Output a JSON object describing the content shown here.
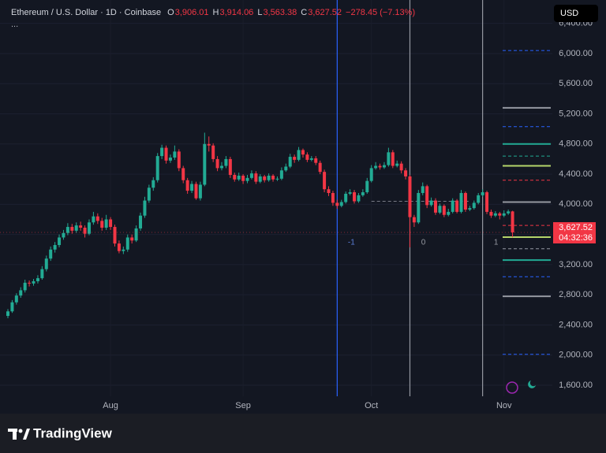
{
  "chart_data": {
    "type": "candlestick",
    "title": "Ethereum / U.S. Dollar · 1D · Coinbase",
    "currency": "USD",
    "ohlc_legend": [
      {
        "key": "O",
        "value": 3906.01,
        "label": "3,906.01"
      },
      {
        "key": "H",
        "value": 3914.06,
        "label": "3,914.06"
      },
      {
        "key": "L",
        "value": 3563.38,
        "label": "3,563.38"
      },
      {
        "key": "C",
        "value": 3627.52,
        "label": "3,627.52"
      }
    ],
    "change": {
      "value": -278.45,
      "label": "−278.45 (−7.13%)"
    },
    "last_price": {
      "value": 3627.52,
      "label": "3,627.52"
    },
    "countdown": "04:32:36",
    "up_color": "#22ab94",
    "down_color": "#f23645",
    "ylim": [
      1224,
      6710
    ],
    "yticks": [
      {
        "value": 1600,
        "label": "1,600.00"
      },
      {
        "value": 2000,
        "label": "2,000.00"
      },
      {
        "value": 2400,
        "label": "2,400.00"
      },
      {
        "value": 2800,
        "label": "2,800.00"
      },
      {
        "value": 3200,
        "label": "3,200.00"
      },
      {
        "value": 3600,
        "label": "3,600.00"
      },
      {
        "value": 4000,
        "label": "4,000.00"
      },
      {
        "value": 4400,
        "label": "4,400.00"
      },
      {
        "value": 4800,
        "label": "4,800.00"
      },
      {
        "value": 5200,
        "label": "5,200.00"
      },
      {
        "value": 5600,
        "label": "5,600.00"
      },
      {
        "value": 6000,
        "label": "6,000.00"
      },
      {
        "value": 6400,
        "label": "6,400.00"
      }
    ],
    "xticks": [
      {
        "value": 24,
        "label": "Aug"
      },
      {
        "value": 55,
        "label": "Sep"
      },
      {
        "value": 85,
        "label": "Oct"
      },
      {
        "value": 116,
        "label": "Nov"
      }
    ],
    "candles": [
      [
        2520,
        2610,
        2490,
        2580
      ],
      [
        2580,
        2730,
        2560,
        2700
      ],
      [
        2700,
        2820,
        2670,
        2790
      ],
      [
        2790,
        2900,
        2760,
        2860
      ],
      [
        2860,
        3000,
        2830,
        2960
      ],
      [
        2960,
        2990,
        2910,
        2950
      ],
      [
        2950,
        3010,
        2920,
        2980
      ],
      [
        2980,
        3060,
        2950,
        3020
      ],
      [
        3020,
        3180,
        3000,
        3140
      ],
      [
        3140,
        3320,
        3110,
        3280
      ],
      [
        3280,
        3440,
        3250,
        3400
      ],
      [
        3400,
        3500,
        3360,
        3460
      ],
      [
        3460,
        3600,
        3430,
        3560
      ],
      [
        3560,
        3660,
        3530,
        3620
      ],
      [
        3620,
        3750,
        3590,
        3700
      ],
      [
        3700,
        3740,
        3610,
        3650
      ],
      [
        3650,
        3760,
        3620,
        3720
      ],
      [
        3720,
        3770,
        3650,
        3690
      ],
      [
        3690,
        3720,
        3560,
        3610
      ],
      [
        3610,
        3800,
        3590,
        3760
      ],
      [
        3760,
        3900,
        3730,
        3840
      ],
      [
        3840,
        3880,
        3740,
        3780
      ],
      [
        3780,
        3820,
        3650,
        3690
      ],
      [
        3690,
        3860,
        3660,
        3800
      ],
      [
        3800,
        3830,
        3660,
        3700
      ],
      [
        3700,
        3730,
        3440,
        3480
      ],
      [
        3480,
        3520,
        3350,
        3380
      ],
      [
        3380,
        3440,
        3340,
        3400
      ],
      [
        3400,
        3600,
        3370,
        3560
      ],
      [
        3560,
        3600,
        3480,
        3520
      ],
      [
        3520,
        3720,
        3500,
        3680
      ],
      [
        3680,
        3890,
        3650,
        3850
      ],
      [
        3850,
        4100,
        3820,
        4050
      ],
      [
        4050,
        4260,
        4020,
        4220
      ],
      [
        4220,
        4360,
        4180,
        4320
      ],
      [
        4320,
        4680,
        4290,
        4640
      ],
      [
        4640,
        4790,
        4600,
        4750
      ],
      [
        4750,
        4780,
        4540,
        4580
      ],
      [
        4580,
        4660,
        4550,
        4620
      ],
      [
        4620,
        4780,
        4590,
        4700
      ],
      [
        4700,
        4730,
        4440,
        4480
      ],
      [
        4480,
        4510,
        4280,
        4320
      ],
      [
        4320,
        4350,
        4140,
        4180
      ],
      [
        4180,
        4310,
        4150,
        4270
      ],
      [
        4270,
        4300,
        4060,
        4080
      ],
      [
        4080,
        4300,
        4050,
        4260
      ],
      [
        4260,
        4950,
        4240,
        4800
      ],
      [
        4800,
        4900,
        4700,
        4780
      ],
      [
        4780,
        4810,
        4560,
        4600
      ],
      [
        4600,
        4640,
        4440,
        4480
      ],
      [
        4480,
        4560,
        4450,
        4510
      ],
      [
        4510,
        4640,
        4480,
        4600
      ],
      [
        4600,
        4630,
        4350,
        4390
      ],
      [
        4390,
        4420,
        4300,
        4330
      ],
      [
        4330,
        4420,
        4310,
        4380
      ],
      [
        4380,
        4400,
        4270,
        4310
      ],
      [
        4310,
        4390,
        4280,
        4350
      ],
      [
        4350,
        4450,
        4330,
        4410
      ],
      [
        4410,
        4440,
        4270,
        4300
      ],
      [
        4300,
        4400,
        4280,
        4370
      ],
      [
        4370,
        4390,
        4290,
        4320
      ],
      [
        4320,
        4410,
        4300,
        4380
      ],
      [
        4380,
        4400,
        4300,
        4330
      ],
      [
        4330,
        4370,
        4310,
        4340
      ],
      [
        4340,
        4490,
        4320,
        4450
      ],
      [
        4450,
        4540,
        4430,
        4500
      ],
      [
        4500,
        4670,
        4480,
        4630
      ],
      [
        4630,
        4660,
        4550,
        4590
      ],
      [
        4590,
        4760,
        4570,
        4720
      ],
      [
        4720,
        4740,
        4620,
        4660
      ],
      [
        4660,
        4690,
        4560,
        4590
      ],
      [
        4590,
        4640,
        4570,
        4610
      ],
      [
        4610,
        4640,
        4520,
        4550
      ],
      [
        4550,
        4580,
        4400,
        4430
      ],
      [
        4430,
        4460,
        4160,
        4200
      ],
      [
        4200,
        4240,
        4110,
        4150
      ],
      [
        4150,
        4180,
        3980,
        4020
      ],
      [
        4020,
        4060,
        3940,
        3980
      ],
      [
        3980,
        4060,
        3960,
        4030
      ],
      [
        4030,
        4170,
        4010,
        4140
      ],
      [
        4140,
        4200,
        4120,
        4160
      ],
      [
        4160,
        4190,
        4010,
        4040
      ],
      [
        4040,
        4150,
        4020,
        4120
      ],
      [
        4120,
        4200,
        4100,
        4160
      ],
      [
        4160,
        4350,
        4140,
        4310
      ],
      [
        4310,
        4520,
        4290,
        4480
      ],
      [
        4480,
        4560,
        4460,
        4510
      ],
      [
        4510,
        4540,
        4460,
        4490
      ],
      [
        4490,
        4560,
        4470,
        4520
      ],
      [
        4520,
        4750,
        4500,
        4690
      ],
      [
        4690,
        4720,
        4480,
        4510
      ],
      [
        4510,
        4580,
        4490,
        4540
      ],
      [
        4540,
        4570,
        4410,
        4450
      ],
      [
        4450,
        4480,
        4330,
        4370
      ],
      [
        4370,
        4390,
        3430,
        3830
      ],
      [
        3830,
        3860,
        3700,
        3760
      ],
      [
        3760,
        4190,
        3740,
        4150
      ],
      [
        4150,
        4290,
        4120,
        4240
      ],
      [
        4240,
        4260,
        3950,
        3990
      ],
      [
        3990,
        4090,
        3970,
        4050
      ],
      [
        4050,
        4080,
        3860,
        3890
      ],
      [
        3890,
        4010,
        3870,
        3980
      ],
      [
        3980,
        4000,
        3830,
        3860
      ],
      [
        3860,
        3940,
        3840,
        3900
      ],
      [
        3900,
        4080,
        3880,
        4050
      ],
      [
        4050,
        4070,
        3880,
        3900
      ],
      [
        3900,
        4190,
        3880,
        4150
      ],
      [
        4150,
        4170,
        3900,
        3930
      ],
      [
        3930,
        3980,
        3910,
        3950
      ],
      [
        3950,
        4050,
        3930,
        4020
      ],
      [
        4020,
        4150,
        4000,
        4120
      ],
      [
        4120,
        4200,
        4100,
        4160
      ],
      [
        4160,
        4180,
        3870,
        3900
      ],
      [
        3900,
        3930,
        3820,
        3850
      ],
      [
        3850,
        3910,
        3830,
        3880
      ],
      [
        3880,
        3900,
        3800,
        3850
      ],
      [
        3850,
        3920,
        3830,
        3880
      ],
      [
        3880,
        3930,
        3860,
        3906.01
      ],
      [
        3906.01,
        3914.06,
        3563.38,
        3627.52
      ]
    ],
    "levels": [
      {
        "value": 6040,
        "color": "#2962ff",
        "dashed": true
      },
      {
        "value": 5280,
        "color": "#9598a1",
        "dashed": false
      },
      {
        "value": 5030,
        "color": "#2962ff",
        "dashed": true
      },
      {
        "value": 4800,
        "color": "#22ab94",
        "dashed": false
      },
      {
        "value": 4640,
        "color": "#22ab94",
        "dashed": true
      },
      {
        "value": 4510,
        "color": "#b5d56a",
        "dashed": false
      },
      {
        "value": 4320,
        "color": "#f23645",
        "dashed": true
      },
      {
        "value": 4030,
        "color": "#9598a1",
        "dashed": false
      },
      {
        "value": 3720,
        "color": "#f23645",
        "dashed": true
      },
      {
        "value": 3565,
        "color": "#b5d56a",
        "dashed": false
      },
      {
        "value": 3410,
        "color": "#9598a1",
        "dashed": true
      },
      {
        "value": 3260,
        "color": "#22ab94",
        "dashed": false
      },
      {
        "value": 3040,
        "color": "#2962ff",
        "dashed": true
      },
      {
        "value": 2780,
        "color": "#9598a1",
        "dashed": false
      },
      {
        "value": 2010,
        "color": "#2962ff",
        "dashed": true
      }
    ],
    "reference_segment": {
      "value": 4040,
      "from": 85,
      "to": 108
    },
    "cycles": [
      {
        "label": "-1",
        "index": 77,
        "color": "#2962ff"
      },
      {
        "label": "0",
        "index": 94,
        "color": "#9598a1"
      },
      {
        "label": "1",
        "index": 111,
        "color": "#9598a1"
      }
    ],
    "branding": "TradingView"
  }
}
